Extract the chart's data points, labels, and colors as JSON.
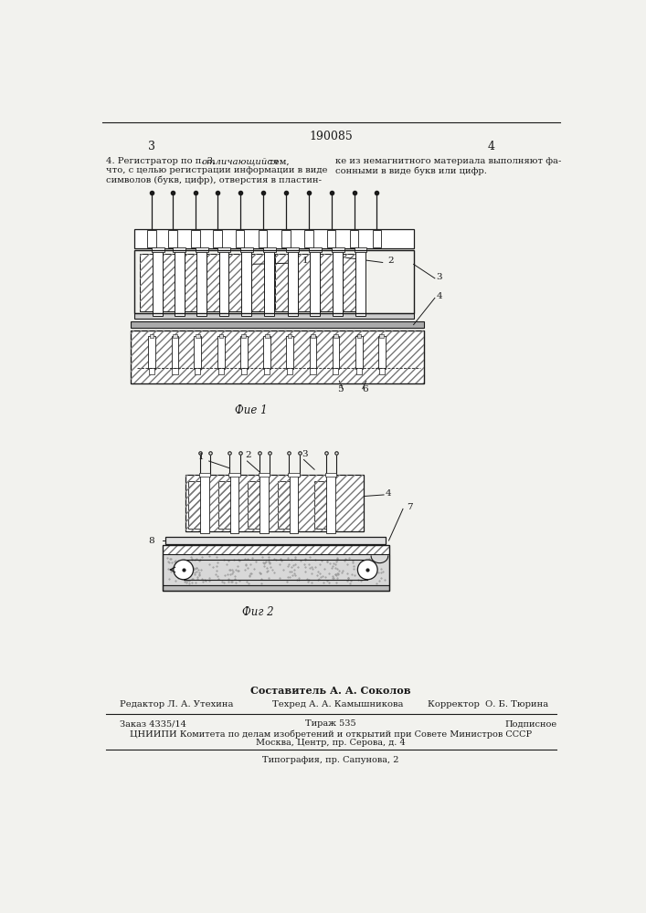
{
  "page_width": 7.07,
  "page_height": 10.0,
  "bg_color": "#f2f2ee",
  "title_number": "190085",
  "page_num_left": "3",
  "page_num_right": "4",
  "fig1_caption": "Фие 1",
  "fig2_caption": "Фиг 2",
  "footer_author": "Составитель А. А. Соколов",
  "footer_editor": "Редактор Л. А. Утехина",
  "footer_tech": "Техред А. А. Камышникова",
  "footer_corrector": "Корректор  О. Б. Тюрина",
  "footer_order": "Заказ 4335/14",
  "footer_print_run": "Тираж 535",
  "footer_subscription": "Подписное",
  "footer_org": "ЦНИИПИ Комитета по делам изобретений и открытий при Совете Министров СССР",
  "footer_address": "Москва, Центр, пр. Серова, д. 4",
  "footer_typography": "Типография, пр. Сапунова, 2",
  "hatch_color": "#777777",
  "line_color": "#1a1a1a",
  "text_color": "#1a1a1a"
}
